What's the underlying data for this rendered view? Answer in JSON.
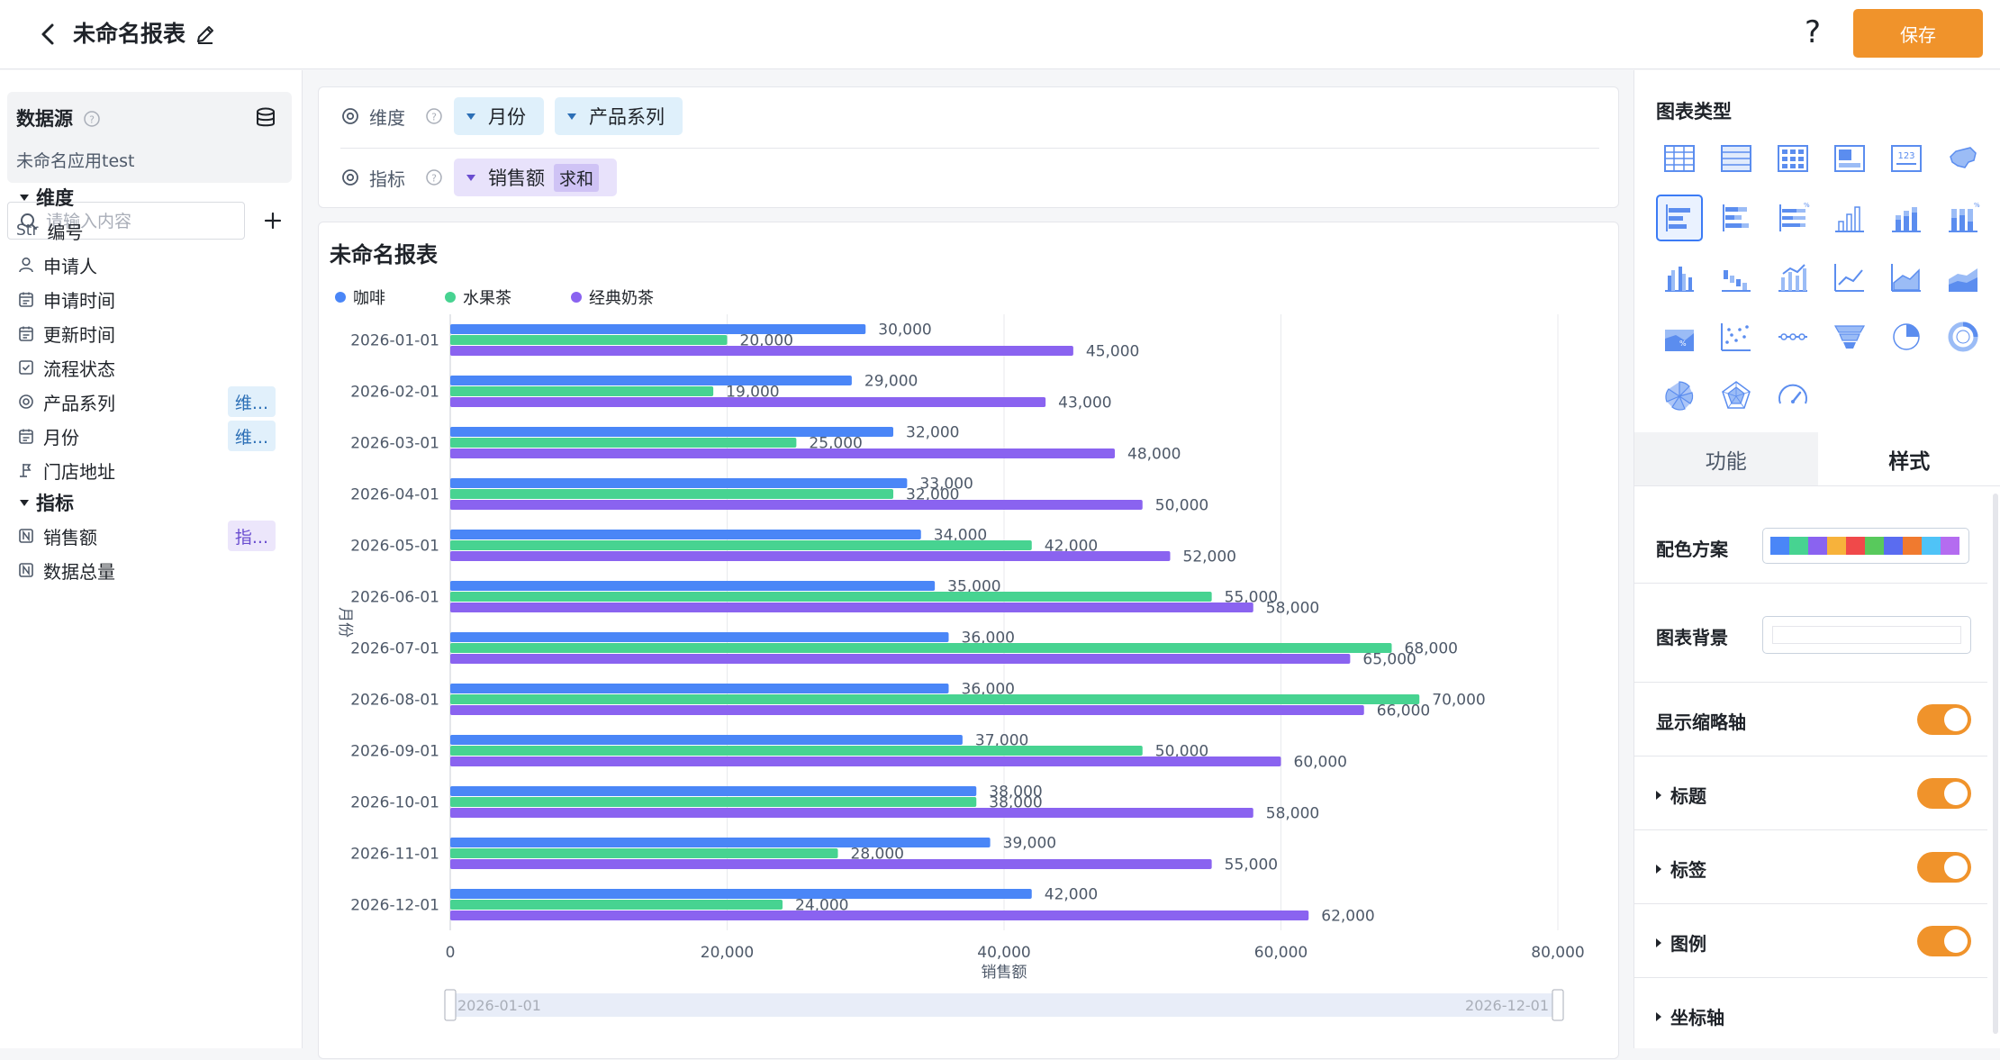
{
  "header": {
    "title": "未命名报表",
    "help": "?",
    "save_label": "保存"
  },
  "datasource": {
    "title": "数据源",
    "app_name": "未命名应用test"
  },
  "search": {
    "placeholder": "请输入内容"
  },
  "dimension_group": "维度",
  "indicator_group": "指标",
  "dimension_fields": [
    {
      "prefix": "Str",
      "label": "编号",
      "icon": "string-icon",
      "tag": ""
    },
    {
      "prefix": "",
      "label": "申请人",
      "icon": "user-icon",
      "tag": ""
    },
    {
      "prefix": "",
      "label": "申请时间",
      "icon": "calendar-icon",
      "tag": ""
    },
    {
      "prefix": "",
      "label": "更新时间",
      "icon": "calendar-icon",
      "tag": ""
    },
    {
      "prefix": "",
      "label": "流程状态",
      "icon": "checkbox-icon",
      "tag": ""
    },
    {
      "prefix": "",
      "label": "产品系列",
      "icon": "radio-icon",
      "tag": "维..."
    },
    {
      "prefix": "",
      "label": "月份",
      "icon": "calendar-icon",
      "tag": "维..."
    },
    {
      "prefix": "",
      "label": "门店地址",
      "icon": "location-icon",
      "tag": ""
    }
  ],
  "indicator_fields": [
    {
      "label": "销售额",
      "icon": "number-icon",
      "tag": "指..."
    },
    {
      "label": "数据总量",
      "icon": "number-icon",
      "tag": ""
    }
  ],
  "config": {
    "dimension_label": "维度",
    "indicator_label": "指标",
    "dimensions": [
      "月份",
      "产品系列"
    ],
    "indicator": {
      "name": "销售额",
      "agg": "求和"
    }
  },
  "chart_title": "未命名报表",
  "chart_data": {
    "type": "bar",
    "orientation": "horizontal",
    "title": "",
    "xlabel": "销售额",
    "ylabel": "月份",
    "xlim": [
      0,
      80000
    ],
    "x_ticks": [
      "0",
      "20,000",
      "40,000",
      "60,000",
      "80,000"
    ],
    "categories": [
      "2026-01-01",
      "2026-02-01",
      "2026-03-01",
      "2026-04-01",
      "2026-05-01",
      "2026-06-01",
      "2026-07-01",
      "2026-08-01",
      "2026-09-01",
      "2026-10-01",
      "2026-11-01",
      "2026-12-01"
    ],
    "series": [
      {
        "name": "咖啡",
        "color": "#4a86f7",
        "values": [
          30000,
          29000,
          32000,
          33000,
          34000,
          35000,
          36000,
          36000,
          37000,
          38000,
          39000,
          42000
        ]
      },
      {
        "name": "水果茶",
        "color": "#47d391",
        "values": [
          20000,
          19000,
          25000,
          32000,
          42000,
          55000,
          68000,
          70000,
          50000,
          38000,
          28000,
          24000
        ]
      },
      {
        "name": "经典奶茶",
        "color": "#8a63f0",
        "values": [
          45000,
          43000,
          48000,
          50000,
          52000,
          58000,
          65000,
          66000,
          60000,
          58000,
          55000,
          62000
        ]
      }
    ],
    "legend": "top-left",
    "grid": true,
    "zoom_range": [
      "2026-01-01",
      "2026-12-01"
    ]
  },
  "right_panel": {
    "chart_type_title": "图表类型",
    "selected_chart_type": "horizontal-bar",
    "tabs": [
      "功能",
      "样式"
    ],
    "active_tab": "样式",
    "color_scheme_label": "配色方案",
    "palette": [
      "#4a86f7",
      "#47d391",
      "#8a63f0",
      "#f7b23b",
      "#f0494a",
      "#58c95c",
      "#5a6cf0",
      "#f07a2f",
      "#4fc3f7",
      "#b46cf0"
    ],
    "chart_bg_label": "图表背景",
    "show_zoom_label": "显示缩略轴",
    "title_label": "标题",
    "label_label": "标签",
    "legend_label": "图例",
    "axis_label": "坐标轴"
  }
}
